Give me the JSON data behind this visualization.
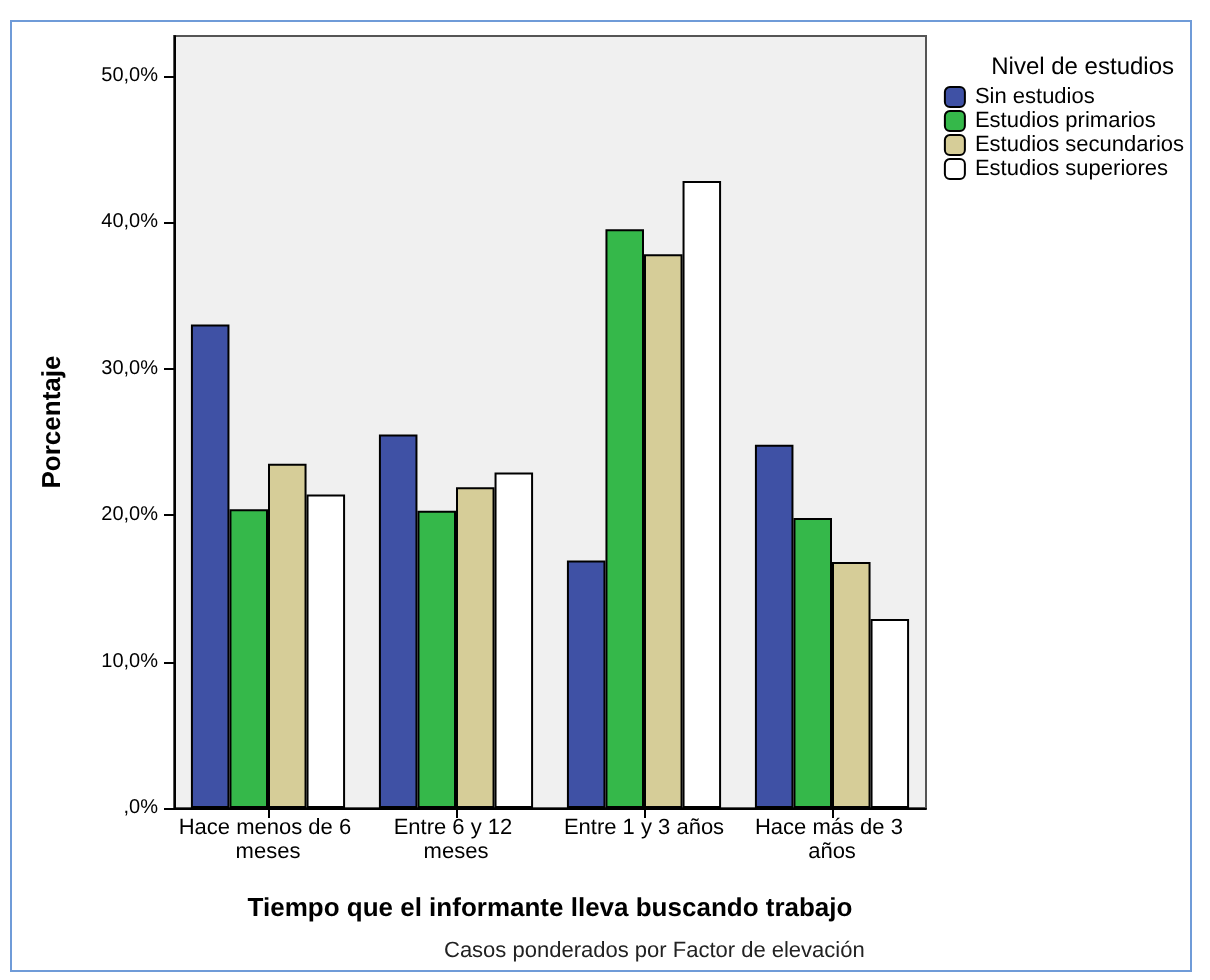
{
  "chart_data": {
    "type": "bar",
    "xlabel": "Tiempo que el informante lleva buscando trabajo",
    "ylabel": "Porcentaje",
    "legend_title": "Nivel de estudios",
    "annotations": [
      "Casos ponderados por Factor de elevación"
    ],
    "categories": [
      "Hace menos de 6 meses",
      "Entre 6 y 12 meses",
      "Entre 1 y 3 años",
      "Hace más de 3 años"
    ],
    "series": [
      {
        "name": "Sin estudios",
        "color": "#3f51a5",
        "values": [
          33.0,
          25.5,
          16.9,
          24.8
        ]
      },
      {
        "name": "Estudios primarios",
        "color": "#35b84a",
        "values": [
          20.4,
          20.3,
          39.5,
          19.8
        ]
      },
      {
        "name": "Estudios secundarios",
        "color": "#d6cd98",
        "values": [
          23.5,
          21.9,
          37.8,
          16.8
        ]
      },
      {
        "name": "Estudios superiores",
        "color": "#ffffff",
        "values": [
          21.4,
          22.9,
          42.8,
          12.9
        ]
      }
    ],
    "ylim": [
      0,
      52.7
    ],
    "yticks": [
      {
        "value": 0,
        "label": ",0%"
      },
      {
        "value": 10,
        "label": "10,0%"
      },
      {
        "value": 20,
        "label": "20,0%"
      },
      {
        "value": 30,
        "label": "30,0%"
      },
      {
        "value": 40,
        "label": "40,0%"
      },
      {
        "value": 50,
        "label": "50,0%"
      }
    ],
    "grid": false,
    "legend": "top right"
  }
}
